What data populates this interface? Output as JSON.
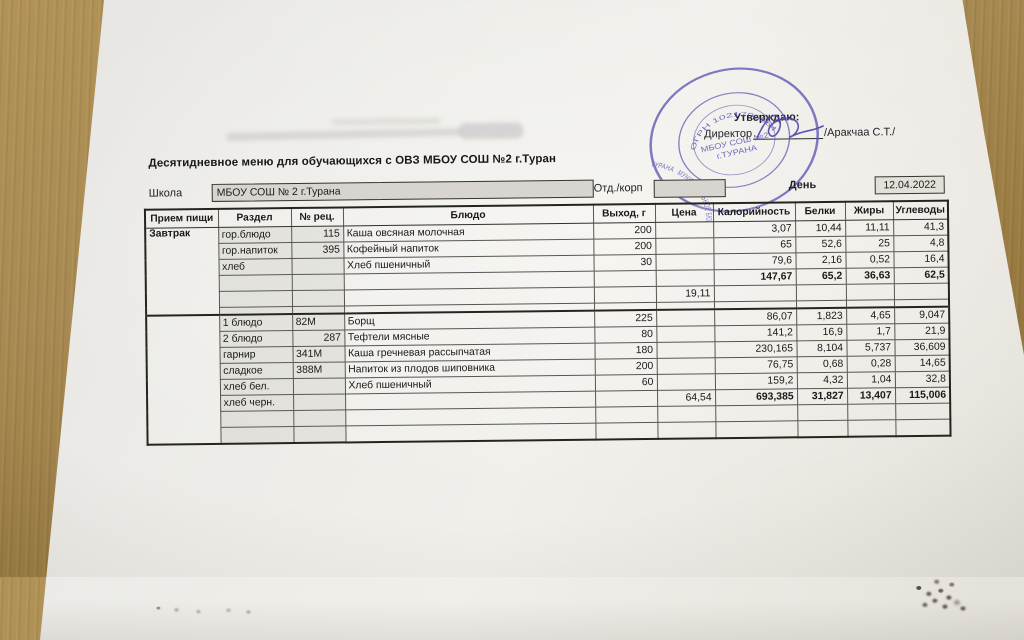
{
  "title": "Десятидневное меню для обучающихся с ОВЗ МБОУ СОШ №2 г.Туран",
  "approval": {
    "approve_label": "Утверждаю:",
    "director_label": "Директор",
    "name_suffix": "/Аракчаа С.Т./"
  },
  "stamp": {
    "ring_text": "МУНИЦИПАЛЬНОЕ БЮДЖЕТНОЕ ОБЩЕОБРАЗОВАТЕЛЬНОЕ УЧРЕЖДЕНИЕ СРЕДНЯЯ ОБЩЕОБРАЗОВАТЕЛЬНАЯ ШКОЛА №2 ГОРОДА ТУРАНА",
    "ogrn_text": "ОГРН 1021700564045",
    "center_line1": "МБОУ СОШ №2",
    "center_line2": "г.ТУРАНА",
    "ink_color": "#564eb0"
  },
  "school_row": {
    "school_label": "Школа",
    "school_value": "МБОУ СОШ № 2 г.Турана",
    "dept_label": "Отд./корп",
    "dept_value": "",
    "day_label": "День",
    "day_value": "12.04.2022"
  },
  "table": {
    "headers": [
      "Прием пищи",
      "Раздел",
      "№ рец.",
      "Блюдо",
      "Выход, г",
      "Цена",
      "Калорийность",
      "Белки",
      "Жиры",
      "Углеводы"
    ],
    "sections": [
      {
        "meal": "Завтрак",
        "rows": [
          {
            "section": "гор.блюдо",
            "rec": "115",
            "rec_align": "right",
            "dish": "Каша овсяная  молочная",
            "out": "200",
            "cal": "3,07",
            "protein": "10,44",
            "fat": "11,11",
            "carbs": "41,3"
          },
          {
            "section": "гор.напиток",
            "rec": "395",
            "rec_align": "right",
            "dish": "Кофейный напиток",
            "out": "200",
            "cal": "65",
            "protein": "52,6",
            "fat": "25",
            "carbs": "4,8"
          },
          {
            "section": "хлеб",
            "dish": "Хлеб пшеничный",
            "out": "30",
            "cal": "79,6",
            "protein": "2,16",
            "fat": "0,52",
            "carbs": "16,4"
          },
          {
            "bold_values": true,
            "cal": "147,67",
            "protein": "65,2",
            "fat": "36,63",
            "carbs": "62,5"
          },
          {
            "price": "19,11"
          },
          {
            "narrow": true
          }
        ]
      },
      {
        "meal": "",
        "rows": [
          {
            "section": "1 блюдо",
            "rec": "82М",
            "rec_align": "left",
            "dish": "Борщ",
            "out": "225",
            "cal": "86,07",
            "protein": "1,823",
            "fat": "4,65",
            "carbs": "9,047"
          },
          {
            "section": "2 блюдо",
            "rec": "287",
            "rec_align": "right",
            "dish": "Тефтели мясные",
            "out": "80",
            "cal": "141,2",
            "protein": "16,9",
            "fat": "1,7",
            "carbs": "21,9"
          },
          {
            "section": "гарнир",
            "rec": "341М",
            "rec_align": "left",
            "dish": "Каша гречневая рассыпчатая",
            "out": "180",
            "cal": "230,165",
            "protein": "8,104",
            "fat": "5,737",
            "carbs": "36,609"
          },
          {
            "section": "сладкое",
            "rec": "388М",
            "rec_align": "left",
            "dish": "Напиток из плодов шиповника",
            "out": "200",
            "cal": "76,75",
            "protein": "0,68",
            "fat": "0,28",
            "carbs": "14,65"
          },
          {
            "section": "хлеб бел.",
            "dish": "Хлеб пшеничный",
            "out": "60",
            "cal": "159,2",
            "protein": "4,32",
            "fat": "1,04",
            "carbs": "32,8"
          },
          {
            "section": "хлеб черн.",
            "bold_values": true,
            "price": "64,54",
            "cal": "693,385",
            "protein": "31,827",
            "fat": "13,407",
            "carbs": "115,006"
          },
          {},
          {}
        ]
      }
    ]
  }
}
